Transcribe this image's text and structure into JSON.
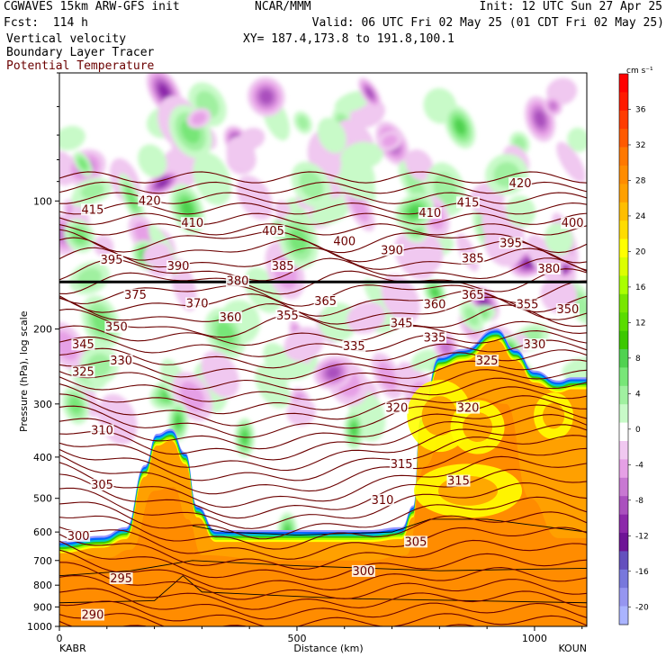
{
  "header": {
    "title": "CGWAVES 15km ARW-GFS init",
    "forecast": "Fcst:  114 h",
    "field1": "Vertical velocity",
    "field2": "Boundary Layer Tracer",
    "field3": "Potential Temperature",
    "center": "NCAR/MMM",
    "init": "Init: 12 UTC Sun 27 Apr 25",
    "valid": "Valid: 06 UTC Fri 02 May 25 (01 CDT Fri 02 May 25)",
    "xy": "XY= 187.4,173.8 to 191.8,100.1"
  },
  "colors": {
    "theta": "#6b0000",
    "tracer": "#000000",
    "background": "#ffffff"
  },
  "chart_data": {
    "type": "heatmap",
    "xlabel": "Distance (km)",
    "ylabel": "Pressure (hPa), log scale",
    "xlim": [
      0,
      1110
    ],
    "ylim": [
      1000,
      50
    ],
    "y_scale": "log",
    "x_ticks": [
      0,
      500,
      1000
    ],
    "x_tick_labels": [
      "0",
      "500",
      "1000"
    ],
    "y_ticks": [
      100,
      200,
      300,
      400,
      500,
      600,
      700,
      800,
      900,
      1000
    ],
    "y_tick_labels": [
      "100",
      "200",
      "300",
      "400",
      "500",
      "600",
      "700",
      "800",
      "900",
      "1000"
    ],
    "endpoints": {
      "left": "KABR",
      "right": "KOUN"
    },
    "colorbar": {
      "units": "cm s⁻¹",
      "labels": [
        "36",
        "32",
        "28",
        "24",
        "20",
        "16",
        "12",
        "8",
        "4",
        "0",
        "-4",
        "-8",
        "-12",
        "-16",
        "-20"
      ],
      "bins": [
        {
          "from": 38,
          "to": 40,
          "color": "#ff0000"
        },
        {
          "from": 36,
          "to": 38,
          "color": "#ff1a00"
        },
        {
          "from": 34,
          "to": 36,
          "color": "#ff3c00"
        },
        {
          "from": 32,
          "to": 34,
          "color": "#ff5a00"
        },
        {
          "from": 30,
          "to": 32,
          "color": "#ff7800"
        },
        {
          "from": 28,
          "to": 30,
          "color": "#ff8c00"
        },
        {
          "from": 26,
          "to": 28,
          "color": "#ffa000"
        },
        {
          "from": 24,
          "to": 26,
          "color": "#ffbe00"
        },
        {
          "from": 22,
          "to": 24,
          "color": "#ffdc00"
        },
        {
          "from": 20,
          "to": 22,
          "color": "#ffff00"
        },
        {
          "from": 18,
          "to": 20,
          "color": "#dcff00"
        },
        {
          "from": 16,
          "to": 18,
          "color": "#aaff00"
        },
        {
          "from": 14,
          "to": 16,
          "color": "#78e600"
        },
        {
          "from": 12,
          "to": 14,
          "color": "#5adc00"
        },
        {
          "from": 10,
          "to": 12,
          "color": "#3cc800"
        },
        {
          "from": 8,
          "to": 10,
          "color": "#50d250"
        },
        {
          "from": 6,
          "to": 8,
          "color": "#78e678"
        },
        {
          "from": 4,
          "to": 6,
          "color": "#a0f0a0"
        },
        {
          "from": 2,
          "to": 4,
          "color": "#c8fac8"
        },
        {
          "from": -2,
          "to": 2,
          "color": "#ffffff"
        },
        {
          "from": -4,
          "to": -2,
          "color": "#f0c8f0"
        },
        {
          "from": -6,
          "to": -4,
          "color": "#e6a0e6"
        },
        {
          "from": -8,
          "to": -6,
          "color": "#c878d2"
        },
        {
          "from": -10,
          "to": -8,
          "color": "#aa50be"
        },
        {
          "from": -12,
          "to": -10,
          "color": "#8c28aa"
        },
        {
          "from": -14,
          "to": -12,
          "color": "#6e1496"
        },
        {
          "from": -16,
          "to": -14,
          "color": "#6450be"
        },
        {
          "from": -18,
          "to": -16,
          "color": "#7878dc"
        },
        {
          "from": -20,
          "to": -18,
          "color": "#9696f0"
        },
        {
          "from": -22,
          "to": -20,
          "color": "#aab4ff"
        }
      ]
    },
    "tracer_colors": [
      "#ff8c00",
      "#ffa000",
      "#ffff00",
      "#aaff00",
      "#3cc800",
      "#00c8c8",
      "#0064ff",
      "#9696ff"
    ],
    "tracer_top": [
      [
        0,
        680
      ],
      [
        90,
        660
      ],
      [
        140,
        630
      ],
      [
        180,
        450
      ],
      [
        205,
        380
      ],
      [
        235,
        370
      ],
      [
        265,
        420
      ],
      [
        290,
        560
      ],
      [
        330,
        640
      ],
      [
        400,
        640
      ],
      [
        500,
        640
      ],
      [
        650,
        640
      ],
      [
        720,
        630
      ],
      [
        745,
        560
      ],
      [
        760,
        350
      ],
      [
        800,
        250
      ],
      [
        850,
        240
      ],
      [
        920,
        215
      ],
      [
        960,
        240
      ],
      [
        1000,
        270
      ],
      [
        1050,
        285
      ],
      [
        1080,
        280
      ],
      [
        1110,
        280
      ]
    ],
    "tracer_core": [
      [
        0,
        700
      ],
      [
        100,
        690
      ],
      [
        150,
        660
      ],
      [
        200,
        480
      ],
      [
        240,
        470
      ],
      [
        270,
        560
      ],
      [
        300,
        680
      ],
      [
        450,
        700
      ],
      [
        650,
        700
      ],
      [
        730,
        680
      ],
      [
        770,
        420
      ],
      [
        820,
        300
      ],
      [
        880,
        290
      ],
      [
        940,
        300
      ],
      [
        990,
        500
      ],
      [
        1050,
        620
      ],
      [
        1110,
        620
      ]
    ],
    "theta_labels": [
      {
        "x": 70,
        "p": 950,
        "text": "290"
      },
      {
        "x": 130,
        "p": 780,
        "text": "295"
      },
      {
        "x": 40,
        "p": 620,
        "text": "300"
      },
      {
        "x": 640,
        "p": 750,
        "text": "300"
      },
      {
        "x": 90,
        "p": 470,
        "text": "305"
      },
      {
        "x": 750,
        "p": 640,
        "text": "305"
      },
      {
        "x": 90,
        "p": 350,
        "text": "310"
      },
      {
        "x": 680,
        "p": 510,
        "text": "310"
      },
      {
        "x": 720,
        "p": 420,
        "text": "315"
      },
      {
        "x": 840,
        "p": 460,
        "text": "315"
      },
      {
        "x": 710,
        "p": 310,
        "text": "320"
      },
      {
        "x": 860,
        "p": 310,
        "text": "320"
      },
      {
        "x": 50,
        "p": 255,
        "text": "325"
      },
      {
        "x": 900,
        "p": 240,
        "text": "325"
      },
      {
        "x": 130,
        "p": 240,
        "text": "330"
      },
      {
        "x": 1000,
        "p": 220,
        "text": "330"
      },
      {
        "x": 620,
        "p": 222,
        "text": "335"
      },
      {
        "x": 790,
        "p": 212,
        "text": "335"
      },
      {
        "x": 50,
        "p": 220,
        "text": "345"
      },
      {
        "x": 720,
        "p": 196,
        "text": "345"
      },
      {
        "x": 120,
        "p": 200,
        "text": "350"
      },
      {
        "x": 1070,
        "p": 182,
        "text": "350"
      },
      {
        "x": 480,
        "p": 188,
        "text": "355"
      },
      {
        "x": 985,
        "p": 177,
        "text": "355"
      },
      {
        "x": 360,
        "p": 190,
        "text": "360"
      },
      {
        "x": 790,
        "p": 177,
        "text": "360"
      },
      {
        "x": 560,
        "p": 174,
        "text": "365"
      },
      {
        "x": 870,
        "p": 168,
        "text": "365"
      },
      {
        "x": 290,
        "p": 176,
        "text": "370"
      },
      {
        "x": 160,
        "p": 168,
        "text": "375"
      },
      {
        "x": 375,
        "p": 156,
        "text": "380"
      },
      {
        "x": 1030,
        "p": 146,
        "text": "380"
      },
      {
        "x": 470,
        "p": 144,
        "text": "385"
      },
      {
        "x": 870,
        "p": 138,
        "text": "385"
      },
      {
        "x": 250,
        "p": 144,
        "text": "390"
      },
      {
        "x": 700,
        "p": 132,
        "text": "390"
      },
      {
        "x": 110,
        "p": 139,
        "text": "395"
      },
      {
        "x": 950,
        "p": 127,
        "text": "395"
      },
      {
        "x": 600,
        "p": 126,
        "text": "400"
      },
      {
        "x": 1080,
        "p": 114,
        "text": "400"
      },
      {
        "x": 450,
        "p": 119,
        "text": "405"
      },
      {
        "x": 280,
        "p": 114,
        "text": "410"
      },
      {
        "x": 780,
        "p": 108,
        "text": "410"
      },
      {
        "x": 70,
        "p": 106,
        "text": "415"
      },
      {
        "x": 860,
        "p": 102,
        "text": "415"
      },
      {
        "x": 190,
        "p": 101,
        "text": "420"
      },
      {
        "x": 970,
        "p": 92,
        "text": "420"
      }
    ]
  }
}
